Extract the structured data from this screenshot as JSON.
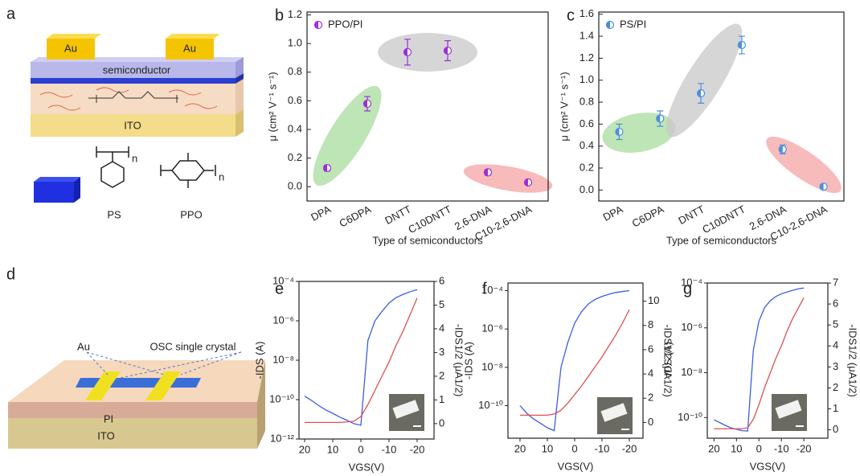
{
  "diagrams": {
    "a": {
      "label": "a",
      "texts": [
        "Au",
        "Au",
        "semiconductor",
        "ITO",
        "PS",
        "PPO",
        "n",
        "n"
      ]
    },
    "d": {
      "label": "d",
      "texts": [
        "Au",
        "OSC single crystal",
        "PI",
        "ITO"
      ]
    }
  },
  "chart_data": [
    {
      "type": "scatter",
      "label": "b",
      "xlabel": "Type of semiconductors",
      "ylabel": "μ (cm² V⁻¹ s⁻¹)",
      "categories": [
        "DPA",
        "C6DPA",
        "DNTT",
        "C10DNTT",
        "2,6-DNA",
        "C10-2,6-DNA"
      ],
      "series": [
        {
          "name": "PPO/PI",
          "color": "#9b30d9",
          "values": [
            0.13,
            0.58,
            0.94,
            0.95,
            0.1,
            0.03
          ],
          "errors": [
            0.02,
            0.05,
            0.09,
            0.07,
            0.02,
            0.01
          ]
        }
      ],
      "ylim": [
        -0.1,
        1.22
      ],
      "yticks": [
        {
          "value": 0,
          "label": "0.0"
        },
        0.2,
        0.4,
        0.6,
        0.8,
        {
          "value": 1,
          "label": "1.0"
        },
        1.2
      ]
    },
    {
      "type": "scatter",
      "label": "c",
      "xlabel": "Type of semiconductors",
      "ylabel": "μ (cm² V⁻¹ s⁻¹)",
      "categories": [
        "DPA",
        "C6DPA",
        "DNTT",
        "C10DNTT",
        "2,6-DNA",
        "C10-2,6-DNA"
      ],
      "series": [
        {
          "name": "PS/PI",
          "color": "#4a8fe0",
          "values": [
            0.53,
            0.65,
            0.88,
            1.32,
            0.37,
            0.03
          ],
          "errors": [
            0.07,
            0.07,
            0.09,
            0.08,
            0.04,
            0.02
          ]
        }
      ],
      "ylim": [
        -0.1,
        1.62
      ],
      "yticks": [
        {
          "value": 0,
          "label": "0.0"
        },
        0.2,
        0.4,
        0.6,
        0.8,
        {
          "value": 1,
          "label": "1.0"
        },
        1.2,
        1.4,
        1.6
      ]
    },
    {
      "type": "line",
      "label": "e",
      "xlabel": "VGS(V)",
      "ylabel": "-IDS (A)",
      "y2label": "-IDS1/2 (μA1/2)",
      "ylog": true,
      "x": [
        20,
        17.5,
        15,
        12.5,
        10,
        7.5,
        5,
        2.5,
        0,
        -2.5,
        -5,
        -7.5,
        -10,
        -12.5,
        -15,
        -17.5,
        -20
      ],
      "xlim": [
        22,
        -26
      ],
      "xticks": [
        20,
        10,
        0,
        -10,
        -20
      ],
      "ylim": [
        1e-12,
        0.0001
      ],
      "yticks": [
        {
          "value": 0.0001,
          "label": "10⁻⁴"
        },
        {
          "value": 1e-06,
          "label": "10⁻⁶"
        },
        {
          "value": 1e-08,
          "label": "10⁻⁸"
        },
        {
          "value": 1e-10,
          "label": "10⁻¹⁰"
        },
        {
          "value": 1e-12,
          "label": "10⁻¹²"
        }
      ],
      "y2lim": [
        -0.65,
        6
      ],
      "y2ticks": [
        0,
        1,
        2,
        3,
        4,
        5,
        6
      ],
      "series": [
        {
          "color": "#3a5fe0",
          "values": [
            1.5e-10,
            9e-11,
            5e-11,
            3e-11,
            2e-11,
            1.3e-11,
            9e-12,
            6e-12,
            5e-12,
            1e-07,
            1e-06,
            3e-06,
            8e-06,
            1.5e-05,
            2.2e-05,
            3e-05,
            3.8e-05
          ]
        },
        {
          "color": "#e05050",
          "axis": "y2",
          "values": [
            0.05,
            0.05,
            0.05,
            0.05,
            0.05,
            0.05,
            0.07,
            0.1,
            0.3,
            0.8,
            1.4,
            2.0,
            2.6,
            3.3,
            3.9,
            4.6,
            5.3
          ]
        }
      ]
    },
    {
      "type": "line",
      "label": "f",
      "xlabel": "VGS(V)",
      "ylabel": "-IDS (A)",
      "y2label": "-IDS1/2 (μA1/2)",
      "ylog": true,
      "x": [
        20,
        17.5,
        15,
        12.5,
        10,
        7.5,
        5,
        2.5,
        0,
        -2.5,
        -5,
        -7.5,
        -10,
        -12.5,
        -15,
        -17.5,
        -20
      ],
      "xlim": [
        24.4,
        -25
      ],
      "xticks": [
        20,
        10,
        0,
        -10,
        -20
      ],
      "ylim": [
        2e-12,
        0.00025
      ],
      "yticks": [
        {
          "value": 0.0001,
          "label": "10⁻⁴"
        },
        {
          "value": 1e-06,
          "label": "10⁻⁶"
        },
        {
          "value": 1e-08,
          "label": "10⁻⁸"
        },
        {
          "value": 1e-10,
          "label": "10⁻¹⁰"
        }
      ],
      "y2lim": [
        -1.3,
        11.5
      ],
      "y2ticks": [
        0,
        2,
        4,
        6,
        8,
        10
      ],
      "series": [
        {
          "color": "#3a5fe0",
          "values": [
            1e-10,
            4e-11,
            2e-11,
            1.2e-11,
            7e-12,
            5e-12,
            1e-08,
            2e-07,
            2e-06,
            8e-06,
            2e-05,
            3.5e-05,
            5e-05,
            6.5e-05,
            8e-05,
            9e-05,
            0.0001
          ]
        },
        {
          "color": "#e05050",
          "axis": "y2",
          "values": [
            0.6,
            0.6,
            0.6,
            0.6,
            0.6,
            0.7,
            1.0,
            1.6,
            2.3,
            3.0,
            3.8,
            4.6,
            5.4,
            6.3,
            7.2,
            8.2,
            9.3
          ]
        }
      ]
    },
    {
      "type": "line",
      "label": "g",
      "xlabel": "VGS(V)",
      "ylabel": "-IDS (A)",
      "y2label": "-IDS1/2 (μA1/2)",
      "ylog": true,
      "x": [
        20,
        17.5,
        15,
        12.5,
        10,
        7.5,
        5,
        2.5,
        0,
        -2.5,
        -5,
        -7.5,
        -10,
        -12.5,
        -15,
        -17.5,
        -20
      ],
      "xlim": [
        23,
        -30.7
      ],
      "xticks": [
        20,
        10,
        0,
        -10,
        -20
      ],
      "ylim": [
        1.2e-11,
        0.0001
      ],
      "yticks": [
        {
          "value": 0.0001,
          "label": "10⁻⁴"
        },
        {
          "value": 1e-06,
          "label": "10⁻⁶"
        },
        {
          "value": 1e-08,
          "label": "10⁻⁸"
        },
        {
          "value": 1e-10,
          "label": "10⁻¹⁰"
        }
      ],
      "y2lim": [
        -0.4,
        7
      ],
      "y2ticks": [
        0,
        1,
        2,
        3,
        4,
        5,
        6,
        7
      ],
      "series": [
        {
          "color": "#3a5fe0",
          "values": [
            8e-11,
            6e-11,
            4.5e-11,
            3.5e-11,
            3e-11,
            2.6e-11,
            2.5e-11,
            1e-07,
            2e-06,
            8e-06,
            1.6e-05,
            2.5e-05,
            3.3e-05,
            4e-05,
            4.7e-05,
            5.5e-05,
            6e-05
          ]
        },
        {
          "color": "#e05050",
          "axis": "y2",
          "values": [
            0.05,
            0.05,
            0.05,
            0.05,
            0.05,
            0.05,
            0.1,
            0.5,
            1.2,
            2.0,
            2.7,
            3.4,
            4.0,
            4.7,
            5.3,
            5.8,
            6.3
          ]
        }
      ]
    }
  ]
}
